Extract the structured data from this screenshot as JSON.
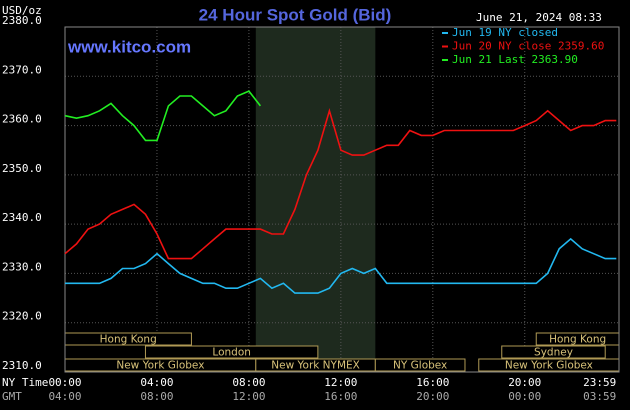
{
  "chart_data": {
    "type": "line",
    "title": "24 Hour Spot Gold (Bid)",
    "subtitle": "June 21, 2024 08:33",
    "source": "www.kitco.com",
    "y_label": "USD/oz",
    "x_label": "NY Time",
    "x2_label": "GMT",
    "xlim": [
      0,
      24.1
    ],
    "ylim": [
      2310,
      2380
    ],
    "grid": true,
    "background": "#000000",
    "xticks": [
      {
        "value": 0,
        "label": "00:00"
      },
      {
        "value": 4,
        "label": "04:00"
      },
      {
        "value": 8,
        "label": "08:00"
      },
      {
        "value": 12,
        "label": "12:00"
      },
      {
        "value": 16,
        "label": "16:00"
      },
      {
        "value": 20,
        "label": "20:00"
      },
      {
        "value": 23.983,
        "label": "23:59"
      }
    ],
    "x2ticks": [
      {
        "value": 0,
        "label": "04:00"
      },
      {
        "value": 4,
        "label": "08:00"
      },
      {
        "value": 8,
        "label": "12:00"
      },
      {
        "value": 12,
        "label": "16:00"
      },
      {
        "value": 16,
        "label": "20:00"
      },
      {
        "value": 20,
        "label": "00:00"
      },
      {
        "value": 23.983,
        "label": "03:59"
      }
    ],
    "yticks": [
      {
        "value": 2310,
        "label": "2310.0"
      },
      {
        "value": 2320,
        "label": "2320.0"
      },
      {
        "value": 2330,
        "label": "2330.0"
      },
      {
        "value": 2340,
        "label": "2340.0"
      },
      {
        "value": 2350,
        "label": "2350.0"
      },
      {
        "value": 2360,
        "label": "2360.0"
      },
      {
        "value": 2370,
        "label": "2370.0"
      },
      {
        "value": 2380,
        "label": "2380.0"
      }
    ],
    "x": [
      0,
      0.5,
      1,
      1.5,
      2,
      2.5,
      3,
      3.5,
      4,
      4.5,
      5,
      5.5,
      6,
      6.5,
      7,
      7.5,
      8,
      8.5,
      9,
      9.5,
      10,
      10.5,
      11,
      11.5,
      12,
      12.5,
      13,
      13.5,
      14,
      14.5,
      15,
      15.5,
      16,
      16.5,
      17,
      17.5,
      18,
      18.5,
      19,
      19.5,
      20,
      20.5,
      21,
      21.5,
      22,
      22.5,
      23,
      23.5,
      23.983
    ],
    "series": [
      {
        "name": "Jun 19 NY closed",
        "color": "#22b8f0",
        "values": [
          2328,
          2328,
          2328,
          2328,
          2329,
          2331,
          2331,
          2332,
          2334,
          2332,
          2330,
          2329,
          2328,
          2328,
          2327,
          2327,
          2328,
          2329,
          2327,
          2328,
          2326,
          2326,
          2326,
          2327,
          2330,
          2331,
          2330,
          2331,
          2328,
          2328,
          2328,
          2328,
          2328,
          2328,
          2328,
          2328,
          2328,
          2328,
          2328,
          2328,
          2328,
          2328,
          2330,
          2335,
          2337,
          2335,
          2334,
          2333,
          2333
        ]
      },
      {
        "name": "Jun 20 NY close 2359.60",
        "color": "#ee1111",
        "values": [
          2334,
          2336,
          2339,
          2340,
          2342,
          2343,
          2344,
          2342,
          2338,
          2333,
          2333,
          2333,
          2335,
          2337,
          2339,
          2339,
          2339,
          2339,
          2338,
          2338,
          2343,
          2350,
          2355,
          2363,
          2355,
          2354,
          2354,
          2355,
          2356,
          2356,
          2359,
          2358,
          2358,
          2359,
          2359,
          2359,
          2359,
          2359,
          2359,
          2359,
          2360,
          2361,
          2363,
          2361,
          2359,
          2360,
          2360,
          2361,
          2361
        ]
      },
      {
        "name": "Jun 21 Last 2363.90",
        "color": "#22ee22",
        "values": [
          2362,
          2361.5,
          2362,
          2363,
          2364.5,
          2362,
          2360,
          2357,
          2357,
          2364,
          2366,
          2366,
          2364,
          2362,
          2363,
          2366,
          2367,
          2364,
          null,
          null,
          null,
          null,
          null,
          null,
          null,
          null,
          null,
          null,
          null,
          null,
          null,
          null,
          null,
          null,
          null,
          null,
          null,
          null,
          null,
          null,
          null,
          null,
          null,
          null,
          null,
          null,
          null,
          null,
          null
        ]
      }
    ],
    "sessions": [
      {
        "label": "Hong Kong",
        "start": 0,
        "end": 5.5,
        "row": 0
      },
      {
        "label": "Hong Kong",
        "start": 20.5,
        "end": 24.1,
        "row": 0
      },
      {
        "label": "London",
        "start": 3.5,
        "end": 11,
        "row": 1
      },
      {
        "label": "Sydney",
        "start": 19,
        "end": 23.5,
        "row": 1
      },
      {
        "label": "New York Globex",
        "start": 0,
        "end": 8.3,
        "row": 2
      },
      {
        "label": "New York NYMEX",
        "start": 8.3,
        "end": 13.5,
        "row": 2,
        "shade": true
      },
      {
        "label": "NY Globex",
        "start": 13.5,
        "end": 17.4,
        "row": 2
      },
      {
        "label": "New York Globex",
        "start": 18,
        "end": 24.1,
        "row": 2
      }
    ]
  }
}
